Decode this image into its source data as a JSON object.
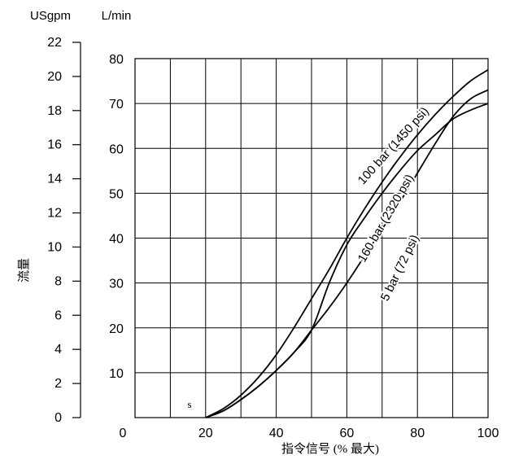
{
  "chart_data": {
    "type": "line",
    "title": "",
    "xlabel": "指令信号 (% 最大)",
    "ylabel": "流量",
    "y_unit_primary": "L/min",
    "y_unit_secondary": "USgpm",
    "xlim": [
      0,
      100
    ],
    "ylim": [
      0,
      80
    ],
    "y2lim": [
      0,
      22
    ],
    "x_ticks": [
      0,
      20,
      40,
      60,
      80,
      100
    ],
    "y_ticks": [
      10,
      20,
      30,
      40,
      50,
      60,
      70,
      80
    ],
    "y2_ticks": [
      0,
      2,
      4,
      6,
      8,
      10,
      12,
      14,
      16,
      18,
      20,
      22
    ],
    "grid": true,
    "annotations": [
      "s"
    ],
    "series": [
      {
        "name": "100 bar (1450 psi)",
        "x": [
          20,
          25,
          30,
          35,
          40,
          45,
          50,
          55,
          60,
          65,
          70,
          75,
          80,
          85,
          90,
          95,
          100
        ],
        "y": [
          0,
          2,
          5,
          9,
          14,
          20,
          26.5,
          33,
          40,
          46.5,
          52.5,
          58,
          63,
          67.5,
          71.5,
          75,
          77.5
        ]
      },
      {
        "name": "160 bar (2320 psi)",
        "x": [
          20,
          25,
          30,
          35,
          40,
          45,
          50,
          55,
          60,
          65,
          70,
          75,
          80,
          85,
          90,
          95,
          100
        ],
        "y": [
          0,
          1.5,
          4,
          7,
          10.5,
          14.5,
          19.5,
          30,
          38.5,
          44.5,
          50,
          55,
          59.5,
          63,
          66.5,
          68.5,
          70
        ]
      },
      {
        "name": "5 bar (72 psi)",
        "x": [
          20,
          25,
          30,
          35,
          40,
          45,
          50,
          55,
          60,
          65,
          70,
          75,
          80,
          85,
          90,
          95,
          100
        ],
        "y": [
          0,
          1.5,
          4,
          7,
          10.5,
          14.5,
          19.5,
          24.5,
          30,
          36,
          42,
          48,
          54.5,
          61,
          67,
          71,
          73
        ]
      }
    ]
  }
}
